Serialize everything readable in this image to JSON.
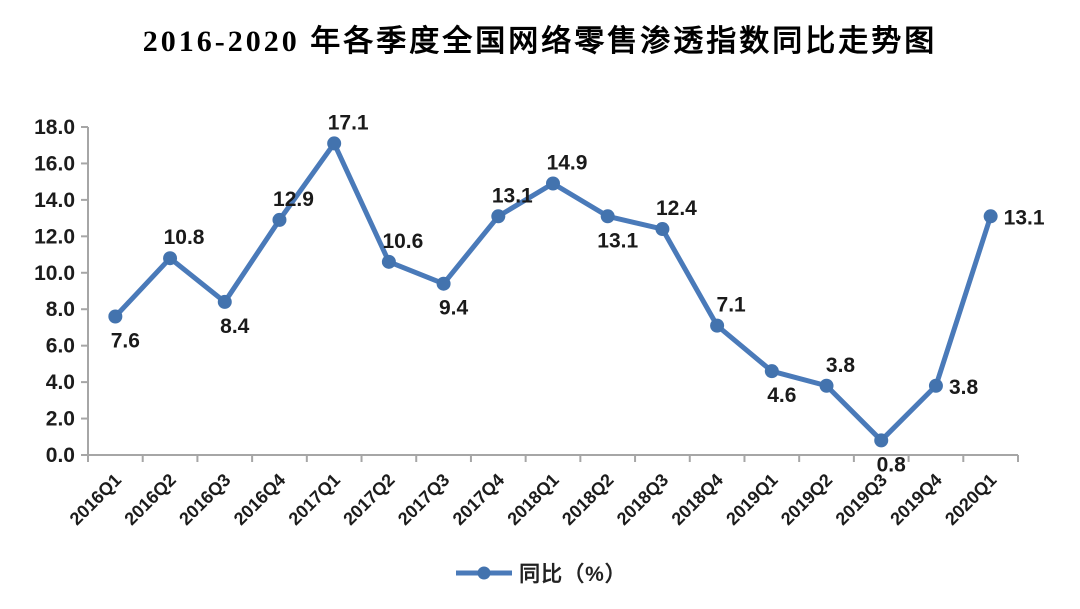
{
  "title": "2016-2020 年各季度全国网络零售渗透指数同比走势图",
  "legend": {
    "label": "同比（%）"
  },
  "chart_data": {
    "type": "line",
    "title": "2016-2020 年各季度全国网络零售渗透指数同比走势图",
    "categories": [
      "2016Q1",
      "2016Q2",
      "2016Q3",
      "2016Q4",
      "2017Q1",
      "2017Q2",
      "2017Q3",
      "2017Q4",
      "2018Q1",
      "2018Q2",
      "2018Q3",
      "2018Q4",
      "2019Q1",
      "2019Q2",
      "2019Q3",
      "2019Q4",
      "2020Q1"
    ],
    "series": [
      {
        "name": "同比（%）",
        "values": [
          7.6,
          10.8,
          8.4,
          12.9,
          17.1,
          10.6,
          9.4,
          13.1,
          14.9,
          13.1,
          12.4,
          7.1,
          4.6,
          3.8,
          0.8,
          3.8,
          13.1
        ]
      }
    ],
    "xlabel": "",
    "ylabel": "",
    "ylim": [
      0,
      18
    ],
    "ytick_step": 2,
    "ytick_decimals": 1,
    "grid": false,
    "legend_position": "bottom",
    "data_label_positions": [
      "below",
      "above",
      "below",
      "above",
      "above",
      "above",
      "below",
      "above",
      "above",
      "below",
      "above",
      "above",
      "below",
      "above",
      "below",
      "right",
      "right"
    ],
    "colors": {
      "line": "#4a7ab9",
      "marker": "#4373ae",
      "axis": "#a6a6a6",
      "data_label": "#1a1a1a",
      "tick_label": "#1c1c1c",
      "legend_text": "#222222"
    }
  }
}
